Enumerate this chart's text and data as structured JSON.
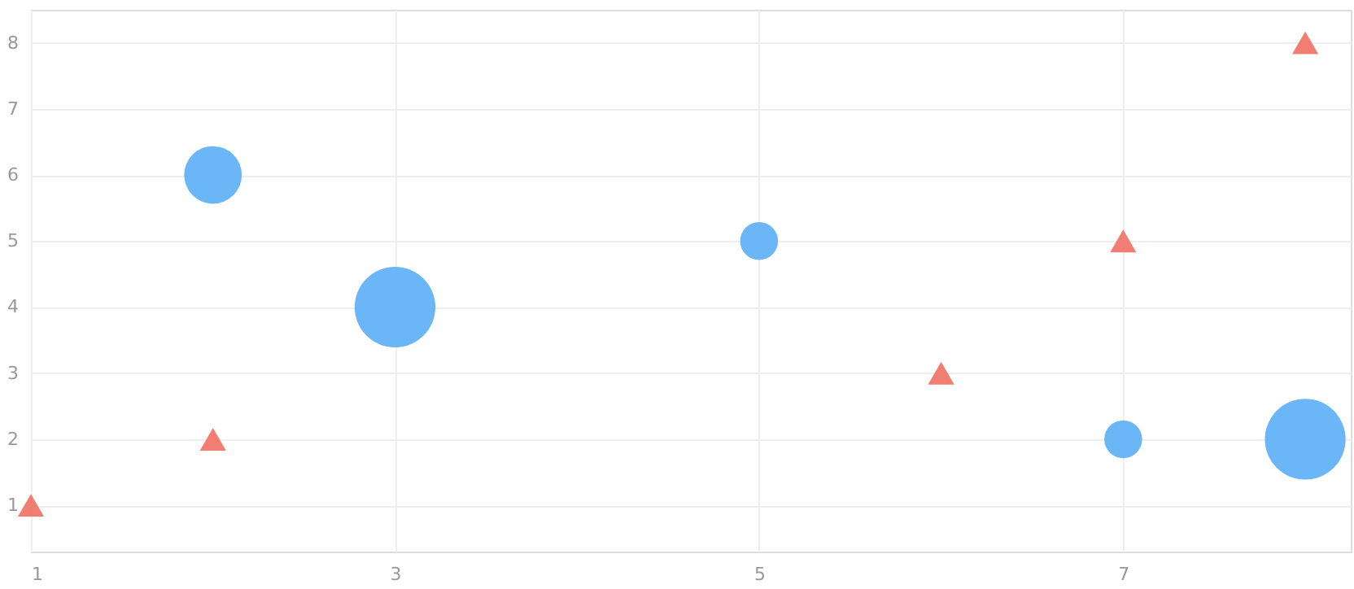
{
  "chart_data": {
    "type": "bubble",
    "x": [
      2,
      3,
      5,
      7,
      8
    ],
    "series": [
      {
        "color": "#5aaef5",
        "values": [
          6,
          4,
          5,
          2,
          2
        ],
        "sizes": [
          0.51,
          1,
          0.22,
          0.22,
          1
        ],
        "marker": "circle"
      },
      {
        "type": "scatter",
        "color": "#f07064",
        "x": [
          1,
          2,
          6,
          7,
          8
        ],
        "values": [
          1,
          2,
          3,
          5,
          8
        ],
        "marker": "triangle"
      }
    ],
    "xlim": [
      1,
      8.25
    ],
    "xticks": [
      1,
      3,
      5,
      7
    ],
    "ylim": [
      0.3,
      8.5
    ],
    "yticks": [
      1,
      2,
      3,
      4,
      5,
      6,
      7,
      8
    ],
    "grid": true,
    "legend": false
  }
}
